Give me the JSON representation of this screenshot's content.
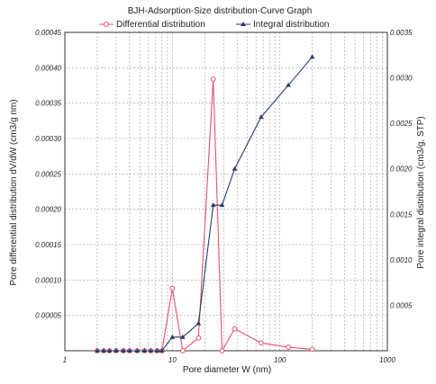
{
  "chart_data": {
    "type": "line",
    "title": "BJH-Adsorption-Size distribution-Curve Graph",
    "xlabel": "Pore diameter W (nm)",
    "ylabel_left": "Pore differential distribution dV/dW (cm3/g nm)",
    "ylabel_right": "Pore integral distribution (cm3/g, STP)",
    "x_scale": "log",
    "xlim": [
      1,
      1000
    ],
    "x_ticks": [
      "1",
      "10",
      "100",
      "1000"
    ],
    "ylim_left": [
      0,
      0.00045
    ],
    "y_ticks_left": [
      "0.00045",
      "0.00040",
      "0.00035",
      "0.00030",
      "0.00025",
      "0.00020",
      "0.00015",
      "0.00010",
      "0.00005"
    ],
    "ylim_right": [
      0,
      0.0035
    ],
    "y_ticks_right": [
      "0.0035",
      "0.0030",
      "0.0025",
      "0.0020",
      "0.0015",
      "0.0010",
      "0.0005"
    ],
    "grid": true,
    "legend_placement": "top",
    "series": [
      {
        "name": "Differential distribution",
        "axis": "left",
        "color": "#e8506a",
        "marker": "open-circle",
        "x": [
          2.0,
          2.3,
          2.6,
          3.0,
          3.5,
          4.0,
          4.7,
          5.5,
          6.3,
          7.2,
          8.0,
          10.0,
          12.5,
          17.5,
          24.0,
          29.0,
          38.0,
          67.0,
          120.0,
          200.0
        ],
        "y": [
          0.0,
          0.0,
          0.0,
          0.0,
          0.0,
          0.0,
          0.0,
          0.0,
          0.0,
          0.0,
          0.0,
          8.8e-05,
          0.0,
          1.8e-05,
          0.000384,
          0.0,
          3.1e-05,
          1.1e-05,
          5e-06,
          2e-06
        ]
      },
      {
        "name": "Integral distribution",
        "axis": "right",
        "color": "#2a3a6a",
        "marker": "filled-triangle",
        "x": [
          2.0,
          2.3,
          2.6,
          3.0,
          3.5,
          4.0,
          4.7,
          5.5,
          6.3,
          7.2,
          8.0,
          10.0,
          12.5,
          17.5,
          24.0,
          29.0,
          38.0,
          67.0,
          120.0,
          200.0
        ],
        "y": [
          0.0,
          0.0,
          0.0,
          0.0,
          0.0,
          0.0,
          0.0,
          0.0,
          0.0,
          0.0,
          0.0,
          0.00015,
          0.00015,
          0.0003,
          0.0016,
          0.0016,
          0.002,
          0.00257,
          0.00292,
          0.00323
        ]
      }
    ]
  }
}
